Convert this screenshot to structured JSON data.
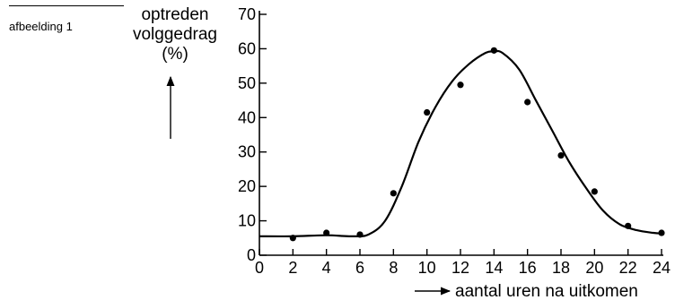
{
  "caption": "afbeelding 1",
  "chart_data": {
    "type": "scatter",
    "ylabel_lines": [
      "optreden",
      "volggedrag",
      "(%)"
    ],
    "xlabel": "aantal uren na uitkomen",
    "xlim": [
      0,
      24
    ],
    "ylim": [
      0,
      70
    ],
    "xticks": [
      0,
      2,
      4,
      6,
      8,
      10,
      12,
      14,
      16,
      18,
      20,
      22,
      24
    ],
    "yticks": [
      0,
      10,
      20,
      30,
      40,
      50,
      60,
      70
    ],
    "grid": false,
    "points": [
      {
        "x": 2,
        "y": 5
      },
      {
        "x": 4,
        "y": 6.5
      },
      {
        "x": 6,
        "y": 6
      },
      {
        "x": 8,
        "y": 18
      },
      {
        "x": 10,
        "y": 41.5
      },
      {
        "x": 12,
        "y": 49.5
      },
      {
        "x": 14,
        "y": 59.5
      },
      {
        "x": 16,
        "y": 44.5
      },
      {
        "x": 18,
        "y": 29
      },
      {
        "x": 20,
        "y": 18.5
      },
      {
        "x": 22,
        "y": 8.5
      },
      {
        "x": 24,
        "y": 6.5
      }
    ],
    "trend_curve": [
      [
        0,
        5.5
      ],
      [
        2,
        5.5
      ],
      [
        4,
        5.8
      ],
      [
        5.5,
        5.5
      ],
      [
        6.5,
        6
      ],
      [
        7.5,
        10
      ],
      [
        8.5,
        20
      ],
      [
        9.5,
        33
      ],
      [
        10.5,
        43
      ],
      [
        11.5,
        50.5
      ],
      [
        12.5,
        55.5
      ],
      [
        13.5,
        58.8
      ],
      [
        14,
        59.2
      ],
      [
        14.5,
        58.8
      ],
      [
        15.5,
        54
      ],
      [
        16.5,
        45
      ],
      [
        17.5,
        36
      ],
      [
        18.5,
        27
      ],
      [
        19.5,
        19.5
      ],
      [
        20.5,
        13
      ],
      [
        21.5,
        9
      ],
      [
        22.5,
        7.3
      ],
      [
        23.5,
        6.5
      ],
      [
        24,
        6.3
      ]
    ],
    "colors": {
      "ink": "#000000"
    }
  }
}
